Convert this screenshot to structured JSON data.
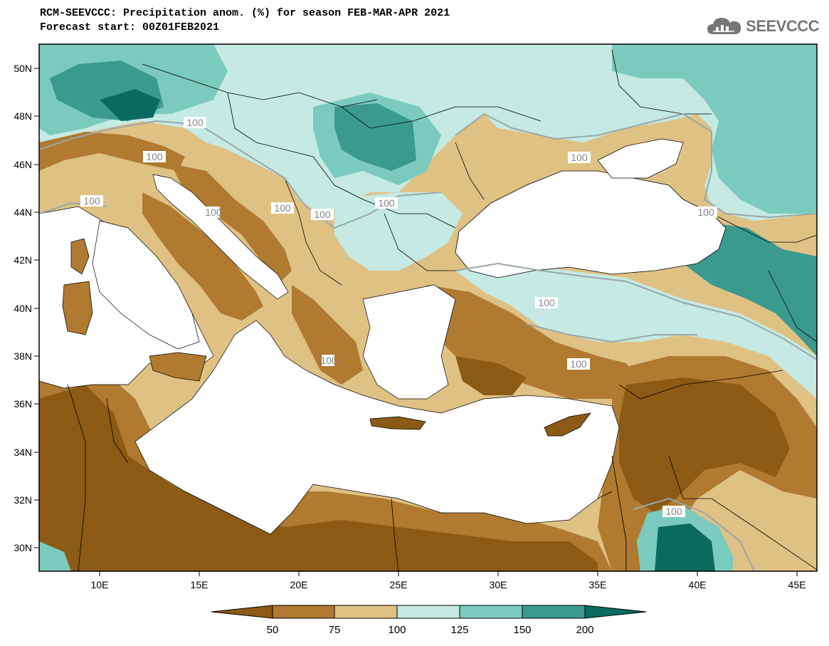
{
  "header": {
    "title": "RCM-SEEVCCC: Precipitation anom. (%) for season FEB-MAR-APR 2021",
    "subtitle": "Forecast start: 00Z01FEB2021",
    "logo_text": "SEEVCCC",
    "logo_icon": "cloud-icon"
  },
  "axes": {
    "lat_labels": [
      "50N",
      "48N",
      "46N",
      "44N",
      "42N",
      "40N",
      "38N",
      "36N",
      "34N",
      "32N",
      "30N"
    ],
    "lon_labels": [
      "10E",
      "15E",
      "20E",
      "25E",
      "30E",
      "35E",
      "40E",
      "45E"
    ]
  },
  "contour_labels": [
    "100",
    "100",
    "100",
    "100",
    "100",
    "100",
    "100",
    "100",
    "100",
    "100",
    "100",
    "100",
    "100"
  ],
  "colorbar": {
    "labels": [
      "50",
      "75",
      "100",
      "125",
      "150",
      "200"
    ],
    "colors": [
      "#8B5A14",
      "#B07A30",
      "#DFC184",
      "#C4EAE3",
      "#7ACBBE",
      "#3A9A8E",
      "#0A6A5E"
    ]
  },
  "palette": {
    "very_dry": "#8B5A14",
    "dry": "#B07A30",
    "slightly_dry": "#DFC184",
    "slightly_wet": "#C4EAE3",
    "wet": "#7ACBBE",
    "very_wet": "#3A9A8E",
    "extreme_wet": "#0A6A5E",
    "sea": "#ffffff",
    "border": "#000000"
  }
}
